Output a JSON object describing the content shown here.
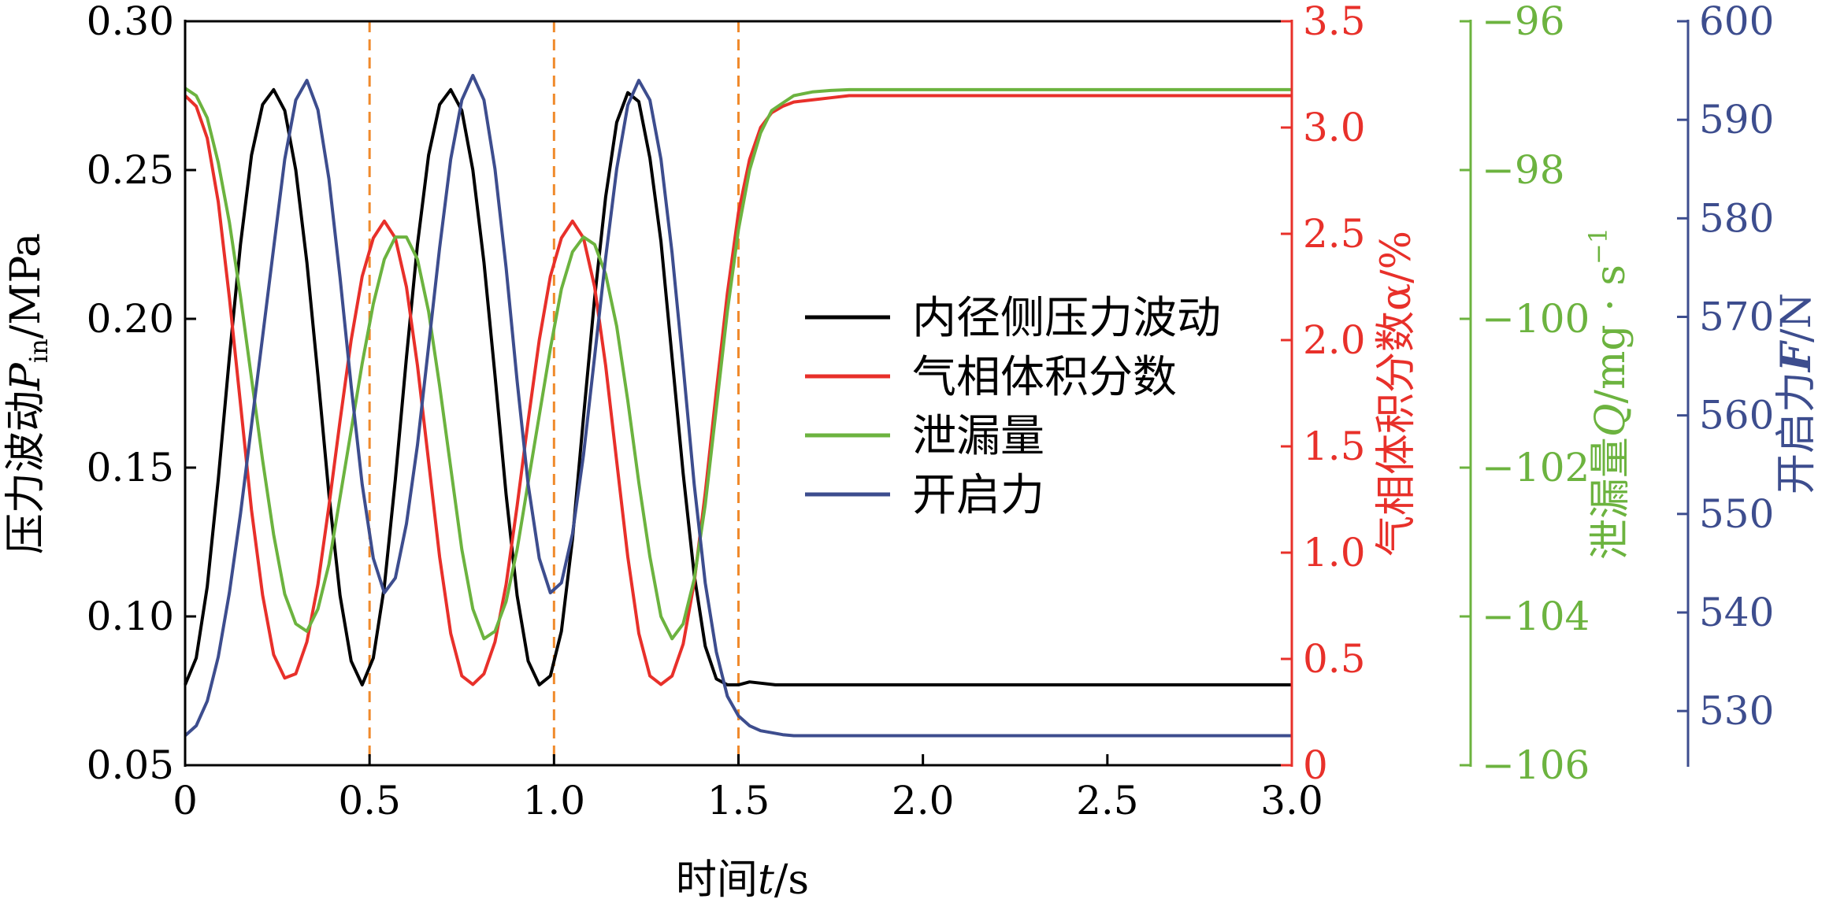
{
  "chart_data": {
    "type": "line",
    "xlabel": "时间t/s",
    "x_ticks": [
      "0",
      "0.5",
      "1.0",
      "1.5",
      "2.0",
      "2.5",
      "3.0"
    ],
    "xlim": [
      0,
      3.0
    ],
    "grid": false,
    "legend_position": "center-right",
    "vertical_markers": [
      0.5,
      1.0,
      1.5
    ],
    "axes": [
      {
        "id": "pressure",
        "side": "left",
        "label": "压力波动P_in/MPa",
        "label_main": "压力波动",
        "label_var": "P",
        "label_sub": "in",
        "label_unit": "/MPa",
        "ylim": [
          0.05,
          0.3
        ],
        "ticks": [
          "0.05",
          "0.10",
          "0.15",
          "0.20",
          "0.25",
          "0.30"
        ],
        "color": "#000000"
      },
      {
        "id": "vapor",
        "side": "right",
        "label": "气相体积分数α/%",
        "ylim": [
          0,
          3.5
        ],
        "ticks": [
          "0",
          "0.5",
          "1.0",
          "1.5",
          "2.0",
          "2.5",
          "3.0",
          "3.5"
        ],
        "color": "#e8302a"
      },
      {
        "id": "leakage",
        "side": "right",
        "label": "泄漏量Q/mg · s⁻¹",
        "label_main": "泄漏量",
        "label_var": "Q",
        "label_unit": "/mg · s",
        "label_sup": "−1",
        "ylim": [
          -106,
          -96
        ],
        "ticks": [
          "−106",
          "−104",
          "−102",
          "−100",
          "−98",
          "−96"
        ],
        "color": "#6cb33f"
      },
      {
        "id": "force",
        "side": "right",
        "label": "开启力F/N",
        "label_main": "开启力",
        "label_var": "F",
        "label_unit": "/N",
        "ylim": [
          524.5,
          600
        ],
        "ticks": [
          "530",
          "540",
          "550",
          "560",
          "570",
          "580",
          "590",
          "600"
        ],
        "color": "#3d4d8e"
      }
    ],
    "series": [
      {
        "name": "内径侧压力波动",
        "axis": "pressure",
        "color": "#000000",
        "x": [
          0,
          0.03,
          0.06,
          0.09,
          0.12,
          0.15,
          0.18,
          0.21,
          0.24,
          0.27,
          0.3,
          0.33,
          0.36,
          0.39,
          0.42,
          0.45,
          0.48,
          0.51,
          0.54,
          0.57,
          0.6,
          0.63,
          0.66,
          0.69,
          0.72,
          0.75,
          0.78,
          0.81,
          0.84,
          0.87,
          0.9,
          0.93,
          0.96,
          0.99,
          1.02,
          1.05,
          1.08,
          1.11,
          1.14,
          1.17,
          1.2,
          1.23,
          1.26,
          1.29,
          1.32,
          1.35,
          1.38,
          1.41,
          1.44,
          1.47,
          1.5,
          1.53,
          1.6,
          1.8,
          2.0,
          2.5,
          3.0
        ],
        "values": [
          0.077,
          0.086,
          0.11,
          0.146,
          0.187,
          0.225,
          0.255,
          0.272,
          0.277,
          0.27,
          0.25,
          0.219,
          0.181,
          0.141,
          0.107,
          0.085,
          0.077,
          0.086,
          0.11,
          0.146,
          0.187,
          0.225,
          0.255,
          0.272,
          0.277,
          0.27,
          0.25,
          0.219,
          0.181,
          0.141,
          0.107,
          0.085,
          0.077,
          0.08,
          0.095,
          0.126,
          0.167,
          0.207,
          0.241,
          0.266,
          0.276,
          0.273,
          0.254,
          0.226,
          0.187,
          0.148,
          0.114,
          0.09,
          0.079,
          0.077,
          0.077,
          0.078,
          0.077,
          0.077,
          0.077,
          0.077,
          0.077
        ]
      },
      {
        "name": "气相体积分数",
        "axis": "vapor",
        "color": "#e8302a",
        "x": [
          0,
          0.03,
          0.06,
          0.09,
          0.12,
          0.15,
          0.18,
          0.21,
          0.24,
          0.27,
          0.3,
          0.33,
          0.36,
          0.39,
          0.42,
          0.45,
          0.48,
          0.51,
          0.54,
          0.57,
          0.6,
          0.63,
          0.66,
          0.69,
          0.72,
          0.75,
          0.78,
          0.81,
          0.84,
          0.87,
          0.9,
          0.93,
          0.96,
          0.99,
          1.02,
          1.05,
          1.08,
          1.11,
          1.14,
          1.17,
          1.2,
          1.23,
          1.26,
          1.29,
          1.32,
          1.35,
          1.38,
          1.41,
          1.44,
          1.47,
          1.5,
          1.53,
          1.56,
          1.59,
          1.62,
          1.65,
          1.7,
          1.75,
          1.8,
          1.9,
          2.0,
          2.2,
          2.5,
          3.0
        ],
        "values": [
          3.15,
          3.1,
          2.95,
          2.65,
          2.2,
          1.7,
          1.2,
          0.8,
          0.52,
          0.41,
          0.43,
          0.58,
          0.85,
          1.22,
          1.62,
          2.0,
          2.3,
          2.48,
          2.56,
          2.48,
          2.25,
          1.88,
          1.43,
          0.98,
          0.62,
          0.42,
          0.38,
          0.43,
          0.58,
          0.85,
          1.22,
          1.62,
          2.0,
          2.3,
          2.48,
          2.56,
          2.48,
          2.25,
          1.88,
          1.43,
          0.98,
          0.62,
          0.42,
          0.38,
          0.42,
          0.57,
          0.86,
          1.28,
          1.76,
          2.22,
          2.6,
          2.85,
          3.0,
          3.07,
          3.1,
          3.12,
          3.13,
          3.14,
          3.15,
          3.15,
          3.15,
          3.15,
          3.15,
          3.15
        ]
      },
      {
        "name": "泄漏量",
        "axis": "leakage",
        "color": "#6cb33f",
        "x": [
          0,
          0.03,
          0.06,
          0.09,
          0.12,
          0.15,
          0.18,
          0.21,
          0.24,
          0.27,
          0.3,
          0.33,
          0.36,
          0.39,
          0.42,
          0.45,
          0.48,
          0.51,
          0.54,
          0.57,
          0.6,
          0.63,
          0.66,
          0.69,
          0.72,
          0.75,
          0.78,
          0.81,
          0.84,
          0.87,
          0.9,
          0.93,
          0.96,
          0.99,
          1.02,
          1.05,
          1.08,
          1.11,
          1.14,
          1.17,
          1.2,
          1.23,
          1.26,
          1.29,
          1.32,
          1.35,
          1.38,
          1.41,
          1.44,
          1.47,
          1.5,
          1.53,
          1.56,
          1.59,
          1.62,
          1.65,
          1.7,
          1.75,
          1.8,
          1.9,
          2.0,
          2.2,
          2.5,
          3.0
        ],
        "values": [
          -96.9,
          -97.0,
          -97.3,
          -97.9,
          -98.7,
          -99.7,
          -100.8,
          -101.9,
          -102.9,
          -103.7,
          -104.1,
          -104.2,
          -103.9,
          -103.3,
          -102.4,
          -101.5,
          -100.6,
          -99.8,
          -99.2,
          -98.9,
          -98.9,
          -99.2,
          -99.9,
          -100.9,
          -102.0,
          -103.1,
          -103.9,
          -104.3,
          -104.2,
          -103.8,
          -103.1,
          -102.2,
          -101.3,
          -100.4,
          -99.6,
          -99.1,
          -98.9,
          -99.0,
          -99.4,
          -100.1,
          -101.1,
          -102.2,
          -103.2,
          -104.0,
          -104.3,
          -104.1,
          -103.5,
          -102.5,
          -101.2,
          -99.9,
          -98.8,
          -98.0,
          -97.5,
          -97.2,
          -97.1,
          -97.0,
          -96.95,
          -96.93,
          -96.92,
          -96.92,
          -96.92,
          -96.92,
          -96.92,
          -96.92
        ]
      },
      {
        "name": "开启力",
        "axis": "force",
        "color": "#3d4d8e",
        "x": [
          0,
          0.03,
          0.06,
          0.09,
          0.12,
          0.15,
          0.18,
          0.21,
          0.24,
          0.27,
          0.3,
          0.33,
          0.36,
          0.39,
          0.42,
          0.45,
          0.48,
          0.51,
          0.54,
          0.57,
          0.6,
          0.63,
          0.66,
          0.69,
          0.72,
          0.75,
          0.78,
          0.81,
          0.84,
          0.87,
          0.9,
          0.93,
          0.96,
          0.99,
          1.02,
          1.05,
          1.08,
          1.11,
          1.14,
          1.17,
          1.2,
          1.23,
          1.26,
          1.29,
          1.32,
          1.35,
          1.38,
          1.41,
          1.44,
          1.47,
          1.5,
          1.53,
          1.56,
          1.59,
          1.62,
          1.65,
          1.7,
          1.75,
          1.8,
          1.9,
          2.0,
          2.2,
          2.5,
          3.0
        ],
        "values": [
          527.5,
          528.5,
          531.0,
          535.5,
          542.0,
          550.0,
          559.0,
          568.0,
          577.0,
          586.0,
          592.0,
          594.0,
          591.0,
          584.0,
          574.0,
          563.0,
          553.0,
          545.5,
          542.0,
          543.5,
          549.0,
          557.0,
          567.0,
          577.0,
          586.0,
          592.0,
          594.5,
          592.0,
          585.0,
          575.0,
          563.5,
          553.0,
          545.5,
          542.0,
          543.0,
          548.0,
          556.0,
          566.0,
          576.0,
          585.0,
          591.5,
          594.0,
          592.0,
          586.0,
          576.5,
          565.0,
          553.0,
          543.0,
          536.0,
          531.5,
          529.5,
          528.5,
          528.0,
          527.8,
          527.6,
          527.5,
          527.5,
          527.5,
          527.5,
          527.5,
          527.5,
          527.5,
          527.5,
          527.5
        ]
      }
    ]
  }
}
